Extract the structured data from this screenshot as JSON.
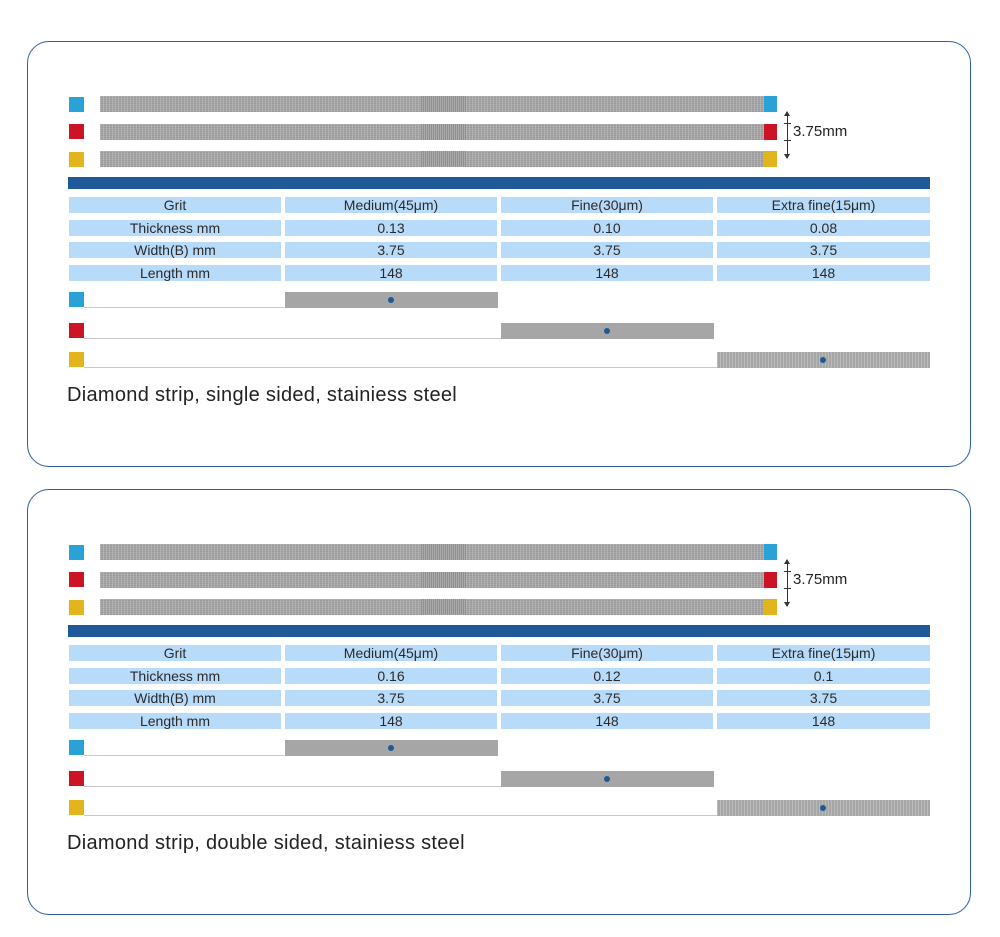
{
  "panels": [
    {
      "width_label": "3.75mm",
      "table": {
        "headers": [
          "Grit",
          "Medium(45μm)",
          "Fine(30μm)",
          "Extra fine(15μm)"
        ],
        "rows": [
          [
            "Thickness mm",
            "0.13",
            "0.10",
            "0.08"
          ],
          [
            "Width(B) mm",
            "3.75",
            "3.75",
            "3.75"
          ],
          [
            "Length mm",
            "148",
            "148",
            "148"
          ]
        ]
      },
      "caption": "Diamond strip, single sided, stainiess steel"
    },
    {
      "width_label": "3.75mm",
      "table": {
        "headers": [
          "Grit",
          "Medium(45μm)",
          "Fine(30μm)",
          "Extra fine(15μm)"
        ],
        "rows": [
          [
            "Thickness mm",
            "0.16",
            "0.12",
            "0.1"
          ],
          [
            "Width(B) mm",
            "3.75",
            "3.75",
            "3.75"
          ],
          [
            "Length mm",
            "148",
            "148",
            "148"
          ]
        ]
      },
      "caption": "Diamond strip, double sided, stainiess steel"
    }
  ],
  "colors": {
    "medium": "#2aa2d8",
    "fine": "#cc1424",
    "extra_fine": "#e2b41d",
    "header_bar": "#1f5a96",
    "table_cell": "#b9dbfa",
    "card_border": "#2f5f9e"
  }
}
